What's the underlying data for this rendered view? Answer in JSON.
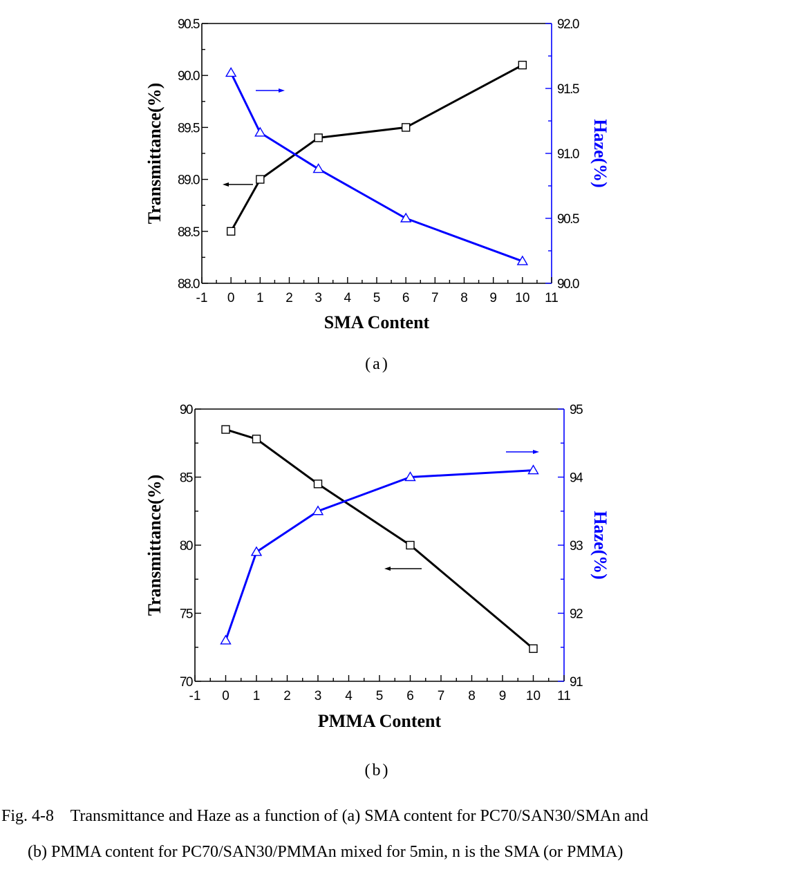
{
  "chart_data": [
    {
      "type": "line",
      "panel_label": "(a)",
      "xlabel": "SMA Content",
      "xlim": [
        -1,
        11
      ],
      "x_ticks": [
        "-1",
        "0",
        "1",
        "2",
        "3",
        "4",
        "5",
        "6",
        "7",
        "8",
        "9",
        "10",
        "11"
      ],
      "ylabel_left": "Transmittance(%)",
      "ylim_left": [
        88.0,
        90.5
      ],
      "y_ticks_left": [
        "88.0",
        "88.5",
        "89.0",
        "89.5",
        "90.0",
        "90.5"
      ],
      "ylabel_right": "Haze(%)",
      "ylim_right": [
        90.0,
        92.0
      ],
      "y_ticks_right": [
        "90.0",
        "90.5",
        "91.0",
        "91.5",
        "92.0"
      ],
      "series": [
        {
          "axis": "left",
          "marker": "square",
          "color": "#000000",
          "x": [
            0,
            1,
            3,
            6,
            10
          ],
          "values": [
            88.5,
            89.0,
            89.4,
            89.5,
            90.1
          ]
        },
        {
          "axis": "right",
          "marker": "triangle",
          "color": "#0000ff",
          "x": [
            0,
            1,
            3,
            6,
            10
          ],
          "values": [
            91.62,
            91.16,
            90.88,
            90.5,
            90.17
          ]
        }
      ]
    },
    {
      "type": "line",
      "panel_label": "(b)",
      "xlabel": "PMMA Content",
      "xlim": [
        -1,
        11
      ],
      "x_ticks": [
        "-1",
        "0",
        "1",
        "2",
        "3",
        "4",
        "5",
        "6",
        "7",
        "8",
        "9",
        "10",
        "11"
      ],
      "ylabel_left": "Transmittance(%)",
      "ylim_left": [
        70,
        90
      ],
      "y_ticks_left": [
        "70",
        "75",
        "80",
        "85",
        "90"
      ],
      "ylabel_right": "Haze(%)",
      "ylim_right": [
        91,
        95
      ],
      "y_ticks_right": [
        "91",
        "92",
        "93",
        "94",
        "95"
      ],
      "series": [
        {
          "axis": "left",
          "marker": "square",
          "color": "#000000",
          "x": [
            0,
            1,
            3,
            6,
            10
          ],
          "values": [
            88.5,
            87.8,
            84.5,
            80.0,
            72.4
          ]
        },
        {
          "axis": "right",
          "marker": "triangle",
          "color": "#0000ff",
          "x": [
            0,
            1,
            3,
            6,
            10
          ],
          "values": [
            91.6,
            92.9,
            93.5,
            94.0,
            94.1
          ]
        }
      ]
    }
  ],
  "caption": {
    "line1": "Fig. 4-8    Transmittance and Haze as a function of (a) SMA content for PC70/SAN30/SMAn and",
    "line2": "(b) PMMA content for PC70/SAN30/PMMAn mixed for 5min, n is the SMA (or PMMA)"
  }
}
